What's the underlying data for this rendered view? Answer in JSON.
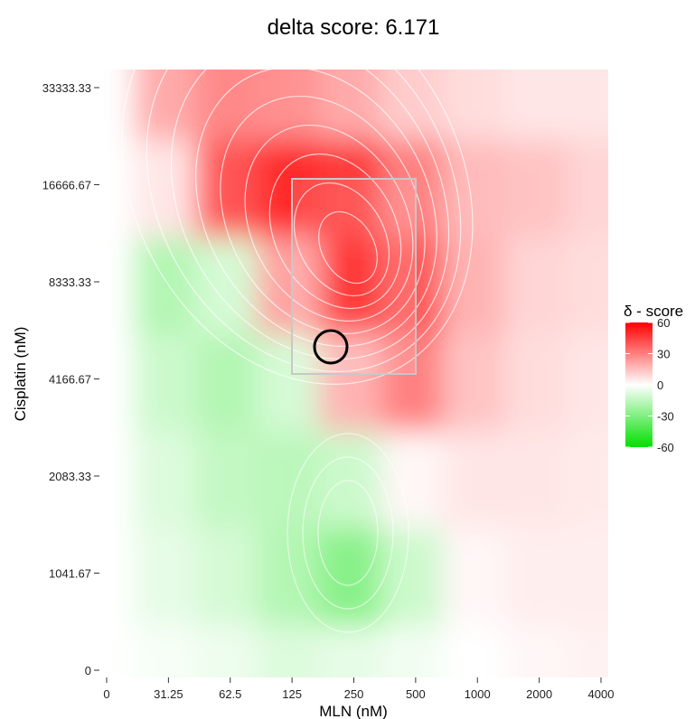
{
  "chart_data": {
    "type": "heatmap",
    "title": "delta score: 6.171",
    "xlabel": "MLN (nM)",
    "ylabel": "Cisplatin (nM)",
    "x_ticks": [
      "0",
      "31.25",
      "62.5",
      "125",
      "250",
      "500",
      "1000",
      "2000",
      "4000"
    ],
    "y_ticks": [
      "0",
      "1041.67",
      "2083.33",
      "4166.67",
      "8333.33",
      "16666.67",
      "33333.33"
    ],
    "legend_title": "δ - score",
    "legend_ticks": [
      "60",
      "30",
      "0",
      "-30",
      "-60"
    ],
    "legend_values": [
      60,
      30,
      0,
      -30,
      -60
    ],
    "score_range": [
      -60,
      60
    ],
    "colors": {
      "high": "#ff0000",
      "mid": "#ffffff",
      "low": "#00e000",
      "contour": "#ffffff",
      "highlight_box": "#c8c8c8",
      "marker": "#000000"
    },
    "grid": false,
    "legend_position": "right",
    "highlight_region": {
      "x_range": [
        "125",
        "500"
      ],
      "y_range": [
        "4166.67",
        "16666.67"
      ]
    },
    "marker_point": {
      "x": "125-250",
      "y": "4166.67-8333.33"
    },
    "score_matrix": {
      "x_index": [
        "0",
        "31.25",
        "62.5",
        "125",
        "250",
        "500",
        "1000",
        "2000",
        "4000"
      ],
      "y_index": [
        "0",
        "1041.67",
        "2083.33",
        "4166.67",
        "8333.33",
        "16666.67",
        "33333.33"
      ],
      "values": [
        [
          0,
          -2,
          -4,
          -8,
          -6,
          -3,
          0,
          2,
          3
        ],
        [
          0,
          -6,
          -10,
          -18,
          -28,
          -12,
          2,
          4,
          4
        ],
        [
          0,
          -8,
          -14,
          -16,
          -12,
          2,
          6,
          6,
          5
        ],
        [
          0,
          -12,
          -18,
          -10,
          18,
          30,
          14,
          8,
          6
        ],
        [
          0,
          -18,
          -10,
          22,
          55,
          40,
          18,
          10,
          8
        ],
        [
          0,
          6,
          40,
          50,
          46,
          30,
          16,
          14,
          10
        ],
        [
          0,
          20,
          28,
          26,
          20,
          12,
          8,
          6,
          6
        ]
      ]
    }
  }
}
